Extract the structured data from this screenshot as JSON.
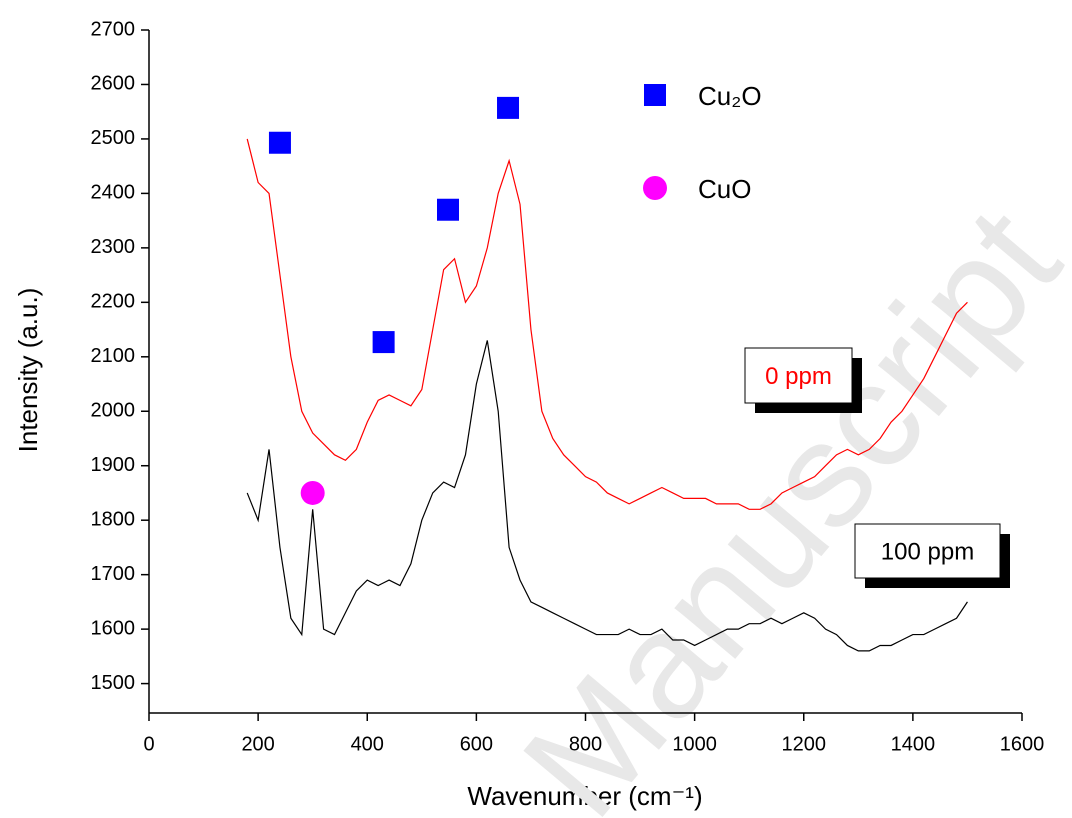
{
  "chart_data": {
    "type": "line",
    "xlabel": "Wavenumber (cm⁻¹)",
    "ylabel": "Intensity (a.u.)",
    "xlim": [
      0,
      1600
    ],
    "ylim": [
      1446,
      2700
    ],
    "xticks": [
      0,
      200,
      400,
      600,
      800,
      1000,
      1200,
      1400,
      1600
    ],
    "yticks": [
      1500,
      1600,
      1700,
      1800,
      1900,
      2000,
      2100,
      2200,
      2300,
      2400,
      2500,
      2600,
      2700
    ],
    "x": [
      180,
      200,
      220,
      240,
      260,
      280,
      300,
      320,
      340,
      360,
      380,
      400,
      420,
      440,
      460,
      480,
      500,
      520,
      540,
      560,
      580,
      600,
      620,
      640,
      660,
      680,
      700,
      720,
      740,
      760,
      780,
      800,
      820,
      840,
      860,
      880,
      900,
      920,
      940,
      960,
      980,
      1000,
      1020,
      1040,
      1060,
      1080,
      1100,
      1120,
      1140,
      1160,
      1180,
      1200,
      1220,
      1240,
      1260,
      1280,
      1300,
      1320,
      1340,
      1360,
      1380,
      1400,
      1420,
      1440,
      1460,
      1480,
      1500
    ],
    "series": [
      {
        "name": "0 ppm",
        "color": "#ff0000",
        "values": [
          2500,
          2420,
          2400,
          2250,
          2100,
          2000,
          1960,
          1940,
          1920,
          1910,
          1930,
          1980,
          2020,
          2030,
          2020,
          2010,
          2040,
          2150,
          2260,
          2280,
          2200,
          2230,
          2300,
          2400,
          2460,
          2380,
          2150,
          2000,
          1950,
          1920,
          1900,
          1880,
          1870,
          1850,
          1840,
          1830,
          1840,
          1850,
          1860,
          1850,
          1840,
          1840,
          1840,
          1830,
          1830,
          1830,
          1820,
          1820,
          1830,
          1850,
          1860,
          1870,
          1880,
          1900,
          1920,
          1930,
          1920,
          1930,
          1950,
          1980,
          2000,
          2030,
          2060,
          2100,
          2140,
          2180,
          2200
        ]
      },
      {
        "name": "100 ppm",
        "color": "#000000",
        "values": [
          1850,
          1800,
          1930,
          1750,
          1620,
          1590,
          1820,
          1600,
          1590,
          1630,
          1670,
          1690,
          1680,
          1690,
          1680,
          1720,
          1800,
          1850,
          1870,
          1860,
          1920,
          2050,
          2130,
          2000,
          1750,
          1690,
          1650,
          1640,
          1630,
          1620,
          1610,
          1600,
          1590,
          1590,
          1590,
          1600,
          1590,
          1590,
          1600,
          1580,
          1580,
          1570,
          1580,
          1590,
          1600,
          1600,
          1610,
          1610,
          1620,
          1610,
          1620,
          1630,
          1620,
          1600,
          1590,
          1570,
          1560,
          1560,
          1570,
          1570,
          1580,
          1590,
          1590,
          1600,
          1610,
          1620,
          1650
        ]
      }
    ],
    "markers": [
      {
        "name": "Cu₂O",
        "color": "#0000ff",
        "shape": "square",
        "x": [
          240,
          430,
          548,
          658
        ],
        "y": [
          2493,
          2127,
          2370,
          2557
        ]
      },
      {
        "name": "CuO",
        "color": "#ff00ff",
        "shape": "circle",
        "x": [
          300
        ],
        "y": [
          1850
        ]
      }
    ],
    "watermark": "Manuscript"
  }
}
